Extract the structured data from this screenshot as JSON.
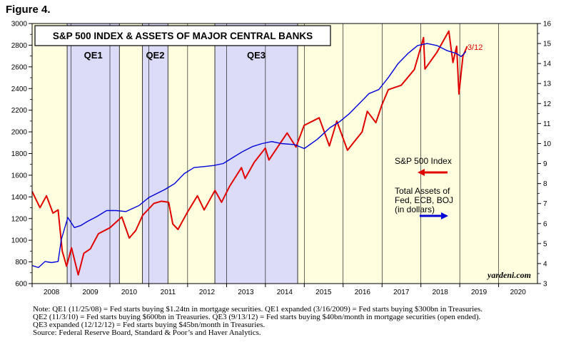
{
  "figure_label": "Figure 4.",
  "chart_data": {
    "type": "line",
    "title": "S&P 500 INDEX & ASSETS OF MAJOR CENTRAL BANKS",
    "x_range": [
      "2008-01-01",
      "2020-12-31"
    ],
    "x_tick_labels": [
      "2008",
      "2009",
      "2010",
      "2011",
      "2012",
      "2013",
      "2014",
      "2015",
      "2016",
      "2017",
      "2018",
      "2019",
      "2020"
    ],
    "y_left": {
      "min": 600,
      "max": 3000,
      "ticks": [
        600,
        800,
        1000,
        1200,
        1400,
        1600,
        1800,
        2000,
        2200,
        2400,
        2600,
        2800,
        3000
      ]
    },
    "y_right": {
      "min": 3,
      "max": 16,
      "ticks": [
        3,
        4,
        5,
        6,
        7,
        8,
        9,
        10,
        11,
        12,
        13,
        14,
        15,
        16
      ]
    },
    "shaded_periods": [
      {
        "label": "QE1",
        "start": "2008-11-25",
        "end": "2010-03-31"
      },
      {
        "label": "QE2",
        "start": "2010-11-03",
        "end": "2011-06-30"
      },
      {
        "label": "QE3",
        "start": "2012-09-13",
        "end": "2014-10-31"
      }
    ],
    "series": [
      {
        "name": "S&P 500 Index",
        "axis": "left",
        "color": "#e00000",
        "points": [
          [
            "2008-01-01",
            1450
          ],
          [
            "2008-03-15",
            1300
          ],
          [
            "2008-05-15",
            1410
          ],
          [
            "2008-07-15",
            1250
          ],
          [
            "2008-09-01",
            1280
          ],
          [
            "2008-10-10",
            900
          ],
          [
            "2008-11-20",
            760
          ],
          [
            "2009-01-05",
            930
          ],
          [
            "2009-03-09",
            680
          ],
          [
            "2009-05-01",
            880
          ],
          [
            "2009-07-01",
            920
          ],
          [
            "2009-09-15",
            1060
          ],
          [
            "2009-12-31",
            1115
          ],
          [
            "2010-04-23",
            1215
          ],
          [
            "2010-07-02",
            1020
          ],
          [
            "2010-09-01",
            1090
          ],
          [
            "2010-11-05",
            1230
          ],
          [
            "2011-02-18",
            1340
          ],
          [
            "2011-04-29",
            1360
          ],
          [
            "2011-07-07",
            1350
          ],
          [
            "2011-08-15",
            1150
          ],
          [
            "2011-10-03",
            1100
          ],
          [
            "2011-12-31",
            1260
          ],
          [
            "2012-04-02",
            1410
          ],
          [
            "2012-06-04",
            1280
          ],
          [
            "2012-09-14",
            1460
          ],
          [
            "2012-11-15",
            1350
          ],
          [
            "2013-01-31",
            1500
          ],
          [
            "2013-05-21",
            1670
          ],
          [
            "2013-06-24",
            1570
          ],
          [
            "2013-09-18",
            1720
          ],
          [
            "2013-12-31",
            1850
          ],
          [
            "2014-02-03",
            1740
          ],
          [
            "2014-07-24",
            1990
          ],
          [
            "2014-10-15",
            1860
          ],
          [
            "2014-12-31",
            2060
          ],
          [
            "2015-05-21",
            2130
          ],
          [
            "2015-08-25",
            1870
          ],
          [
            "2015-11-03",
            2100
          ],
          [
            "2016-02-11",
            1830
          ],
          [
            "2016-06-27",
            2000
          ],
          [
            "2016-08-15",
            2190
          ],
          [
            "2016-11-04",
            2085
          ],
          [
            "2016-12-31",
            2250
          ],
          [
            "2017-03-01",
            2390
          ],
          [
            "2017-06-30",
            2430
          ],
          [
            "2017-10-31",
            2575
          ],
          [
            "2018-01-26",
            2870
          ],
          [
            "2018-02-08",
            2580
          ],
          [
            "2018-06-01",
            2735
          ],
          [
            "2018-09-20",
            2930
          ],
          [
            "2018-10-29",
            2640
          ],
          [
            "2018-12-03",
            2790
          ],
          [
            "2018-12-24",
            2350
          ],
          [
            "2019-01-31",
            2700
          ],
          [
            "2019-03-12",
            2790
          ]
        ]
      },
      {
        "name": "Total Assets of Fed, ECB, BOJ (in dollars)",
        "axis": "right",
        "color": "#0000d8",
        "points": [
          [
            "2008-01-01",
            3.9
          ],
          [
            "2008-03-01",
            3.8
          ],
          [
            "2008-05-01",
            4.1
          ],
          [
            "2008-07-01",
            4.05
          ],
          [
            "2008-09-01",
            4.1
          ],
          [
            "2008-10-01",
            5.2
          ],
          [
            "2008-12-01",
            6.3
          ],
          [
            "2009-02-01",
            5.8
          ],
          [
            "2009-04-01",
            5.9
          ],
          [
            "2009-06-01",
            6.1
          ],
          [
            "2009-09-01",
            6.35
          ],
          [
            "2009-12-01",
            6.65
          ],
          [
            "2010-03-01",
            6.65
          ],
          [
            "2010-06-01",
            6.6
          ],
          [
            "2010-10-01",
            6.9
          ],
          [
            "2011-01-01",
            7.3
          ],
          [
            "2011-06-01",
            7.7
          ],
          [
            "2011-09-01",
            8.0
          ],
          [
            "2011-12-01",
            8.5
          ],
          [
            "2012-03-01",
            8.8
          ],
          [
            "2012-06-01",
            8.85
          ],
          [
            "2012-09-01",
            8.9
          ],
          [
            "2012-12-01",
            9.0
          ],
          [
            "2013-03-01",
            9.3
          ],
          [
            "2013-06-01",
            9.6
          ],
          [
            "2013-09-01",
            9.85
          ],
          [
            "2013-12-01",
            10.0
          ],
          [
            "2014-03-01",
            10.1
          ],
          [
            "2014-06-01",
            10.0
          ],
          [
            "2014-10-01",
            9.95
          ],
          [
            "2015-01-01",
            9.75
          ],
          [
            "2015-05-01",
            10.2
          ],
          [
            "2015-09-01",
            10.8
          ],
          [
            "2015-12-01",
            11.1
          ],
          [
            "2016-03-01",
            11.5
          ],
          [
            "2016-06-01",
            12.0
          ],
          [
            "2016-09-01",
            12.5
          ],
          [
            "2016-12-01",
            12.7
          ],
          [
            "2017-03-01",
            13.3
          ],
          [
            "2017-06-01",
            14.0
          ],
          [
            "2017-09-01",
            14.5
          ],
          [
            "2017-12-01",
            14.9
          ],
          [
            "2018-03-01",
            15.0
          ],
          [
            "2018-06-01",
            14.9
          ],
          [
            "2018-09-01",
            14.65
          ],
          [
            "2018-12-01",
            14.5
          ],
          [
            "2019-01-15",
            14.35
          ],
          [
            "2019-03-01",
            14.6
          ]
        ]
      }
    ],
    "annotations": {
      "sp500_legend": "S&P 500 Index",
      "assets_legend": [
        "Total Assets of",
        "Fed, ECB, BOJ",
        "(in dollars)"
      ],
      "last_date": "3/12",
      "watermark": "yardeni.com"
    },
    "colors": {
      "plot_bg": "#ffffe0",
      "qe_shade": "#dcdcf8",
      "sp500": "#e00000",
      "assets": "#0000d8"
    }
  },
  "notes": [
    "Note: QE1 (11/25/08) = Fed starts buying $1.24tn in mortgage securities. QE1 expanded (3/16/2009) = Fed starts buying $300bn in Treasuries.",
    "QE2 (11/3/10) = Fed starts buying $600bn in Treasuries. QE3 (9/13/12) = Fed starts buying $40bn/month in mortgage securities (open ended).",
    "QE3 expanded (12/12/12) = Fed starts buying $45bn/month in Treasuries.",
    "Source: Federal Reserve Board, Standard & Poor’s and Haver Analytics."
  ]
}
